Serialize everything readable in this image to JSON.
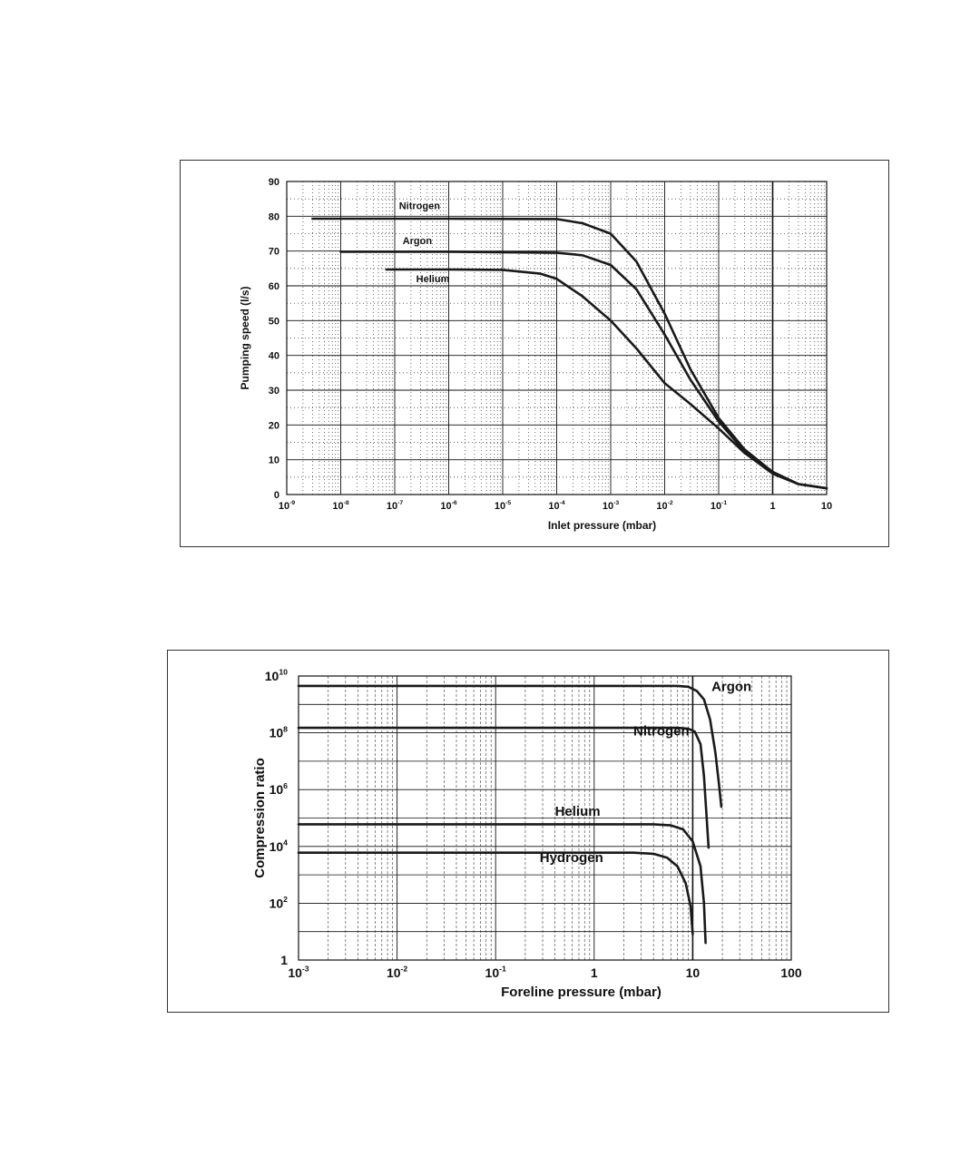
{
  "chart_data": [
    {
      "type": "line",
      "title": "",
      "xlabel": "Inlet pressure (mbar)",
      "ylabel": "Pumping speed (l/s)",
      "xscale": "log",
      "xlim": [
        1e-09,
        10
      ],
      "ylim": [
        0,
        90
      ],
      "grid": true,
      "legend": "inline curve labels",
      "xticks": [
        {
          "value": 1e-09,
          "base": "10",
          "exp": "-9"
        },
        {
          "value": 1e-08,
          "base": "10",
          "exp": "-8"
        },
        {
          "value": 1e-07,
          "base": "10",
          "exp": "-7"
        },
        {
          "value": 1e-06,
          "base": "10",
          "exp": "-6"
        },
        {
          "value": 1e-05,
          "base": "10",
          "exp": "-5"
        },
        {
          "value": 0.0001,
          "base": "10",
          "exp": "-4"
        },
        {
          "value": 0.001,
          "base": "10",
          "exp": "-3"
        },
        {
          "value": 0.01,
          "base": "10",
          "exp": "-2"
        },
        {
          "value": 0.1,
          "base": "10",
          "exp": "-1"
        },
        {
          "value": 1,
          "base": "1",
          "exp": ""
        },
        {
          "value": 10,
          "base": "10",
          "exp": ""
        }
      ],
      "yticks": [
        {
          "value": 0,
          "label": "0"
        },
        {
          "value": 10,
          "label": "10"
        },
        {
          "value": 20,
          "label": "20"
        },
        {
          "value": 30,
          "label": "30"
        },
        {
          "value": 40,
          "label": "40"
        },
        {
          "value": 50,
          "label": "50"
        },
        {
          "value": 60,
          "label": "60"
        },
        {
          "value": 70,
          "label": "70"
        },
        {
          "value": 80,
          "label": "80"
        },
        {
          "value": 90,
          "label": "90"
        }
      ],
      "series": [
        {
          "name": "Nitrogen",
          "label_at": {
            "x": 1.2e-07,
            "y": 82
          },
          "points": [
            [
              3e-09,
              79.3
            ],
            [
              1e-06,
              79.3
            ],
            [
              0.0001,
              79.2
            ],
            [
              0.0003,
              78
            ],
            [
              0.001,
              75
            ],
            [
              0.003,
              67
            ],
            [
              0.01,
              52
            ],
            [
              0.03,
              36
            ],
            [
              0.1,
              22
            ],
            [
              0.3,
              13
            ],
            [
              1,
              6.5
            ],
            [
              3,
              3
            ],
            [
              10,
              1.8
            ]
          ]
        },
        {
          "name": "Argon",
          "label_at": {
            "x": 1.4e-07,
            "y": 72
          },
          "points": [
            [
              1e-08,
              69.8
            ],
            [
              1e-06,
              69.8
            ],
            [
              0.0001,
              69.5
            ],
            [
              0.0003,
              68.8
            ],
            [
              0.001,
              66
            ],
            [
              0.003,
              59
            ],
            [
              0.01,
              46
            ],
            [
              0.03,
              33
            ],
            [
              0.1,
              21
            ],
            [
              0.3,
              12.5
            ],
            [
              1,
              6.5
            ],
            [
              3,
              3
            ],
            [
              10,
              1.8
            ]
          ]
        },
        {
          "name": "Helium",
          "label_at": {
            "x": 2.5e-07,
            "y": 61
          },
          "points": [
            [
              7e-08,
              64.7
            ],
            [
              1e-06,
              64.7
            ],
            [
              1e-05,
              64.6
            ],
            [
              5e-05,
              63.5
            ],
            [
              0.0001,
              62
            ],
            [
              0.0003,
              57
            ],
            [
              0.001,
              50
            ],
            [
              0.003,
              42
            ],
            [
              0.01,
              32
            ],
            [
              0.03,
              26
            ],
            [
              0.1,
              19
            ],
            [
              0.3,
              12
            ],
            [
              1,
              6
            ],
            [
              3,
              3
            ],
            [
              10,
              1.8
            ]
          ]
        }
      ]
    },
    {
      "type": "line",
      "title": "",
      "xlabel": "Foreline pressure (mbar)",
      "ylabel": "Compression ratio",
      "xscale": "log",
      "yscale": "log",
      "xlim": [
        0.001,
        100
      ],
      "ylim": [
        1,
        10000000000.0
      ],
      "grid": true,
      "legend": "inline curve labels",
      "xticks": [
        {
          "value": 0.001,
          "base": "10",
          "exp": "-3"
        },
        {
          "value": 0.01,
          "base": "10",
          "exp": "-2"
        },
        {
          "value": 0.1,
          "base": "10",
          "exp": "-1"
        },
        {
          "value": 1,
          "base": "1",
          "exp": ""
        },
        {
          "value": 10,
          "base": "10",
          "exp": ""
        },
        {
          "value": 100,
          "base": "100",
          "exp": ""
        }
      ],
      "yticks": [
        {
          "value": 1,
          "base": "1",
          "exp": ""
        },
        {
          "value": 100.0,
          "base": "10",
          "exp": "2"
        },
        {
          "value": 10000.0,
          "base": "10",
          "exp": "4"
        },
        {
          "value": 1000000.0,
          "base": "10",
          "exp": "6"
        },
        {
          "value": 100000000.0,
          "base": "10",
          "exp": "8"
        },
        {
          "value": 10000000000.0,
          "base": "10",
          "exp": "10"
        }
      ],
      "series": [
        {
          "name": "Argon",
          "label_at": {
            "x": 15.5,
            "y": 3000000000.0
          },
          "points": [
            [
              0.001,
              4500000000.0
            ],
            [
              1,
              4500000000.0
            ],
            [
              7,
              4500000000.0
            ],
            [
              9,
              4200000000.0
            ],
            [
              11,
              3000000000.0
            ],
            [
              13,
              1500000000.0
            ],
            [
              15,
              300000000.0
            ],
            [
              17,
              20000000.0
            ],
            [
              18.5,
              1500000.0
            ],
            [
              19.5,
              250000.0
            ]
          ]
        },
        {
          "name": "Nitrogen",
          "label_at": {
            "x": 2.5,
            "y": 80000000.0
          },
          "points": [
            [
              0.001,
              150000000.0
            ],
            [
              1,
              150000000.0
            ],
            [
              7,
              150000000.0
            ],
            [
              9,
              140000000.0
            ],
            [
              10.5,
              110000000.0
            ],
            [
              12,
              40000000.0
            ],
            [
              13,
              3000000.0
            ],
            [
              14.5,
              9000.0
            ]
          ]
        },
        {
          "name": "Helium",
          "label_at": {
            "x": 0.4,
            "y": 120000.0
          },
          "points": [
            [
              0.001,
              60000.0
            ],
            [
              1,
              60000.0
            ],
            [
              4,
              60000.0
            ],
            [
              6,
              55000.0
            ],
            [
              8,
              40000.0
            ],
            [
              10,
              15000.0
            ],
            [
              12,
              2000.0
            ],
            [
              13,
              100
            ],
            [
              13.5,
              4
            ]
          ]
        },
        {
          "name": "Hydrogen",
          "label_at": {
            "x": 0.28,
            "y": 2800.0
          },
          "points": [
            [
              0.001,
              6000.0
            ],
            [
              1,
              6000.0
            ],
            [
              2.5,
              6000.0
            ],
            [
              4,
              5500.0
            ],
            [
              5.5,
              4000.0
            ],
            [
              7,
              2000.0
            ],
            [
              8.5,
              500
            ],
            [
              9.5,
              80
            ],
            [
              10,
              8
            ]
          ]
        }
      ]
    }
  ]
}
